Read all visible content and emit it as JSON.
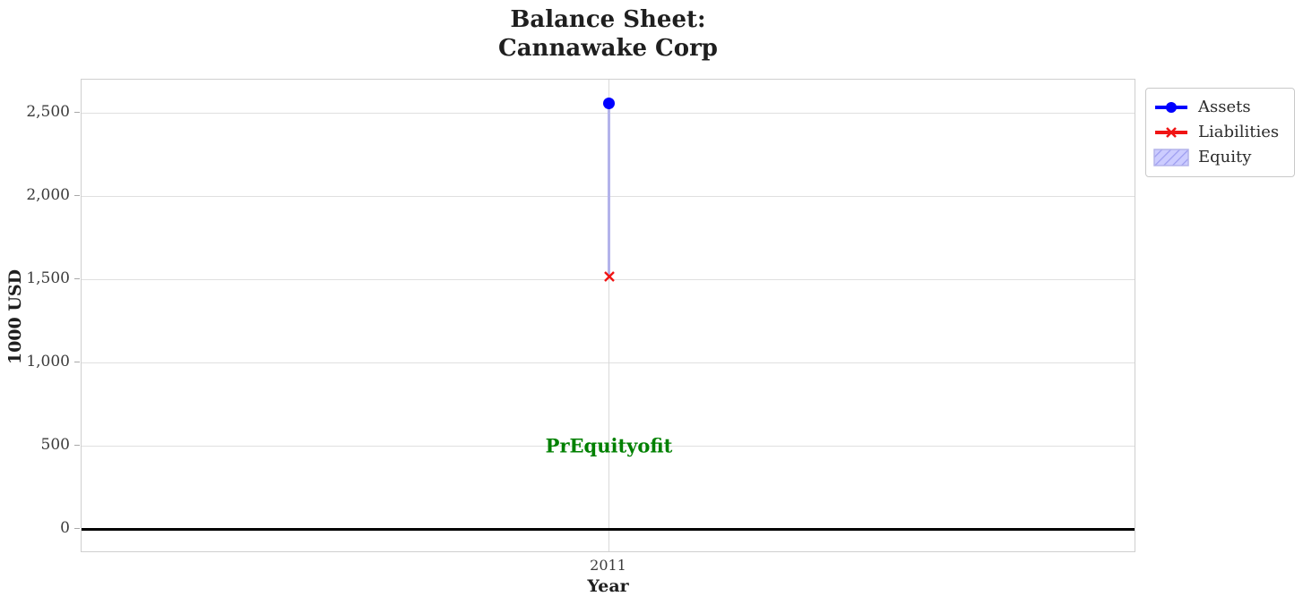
{
  "chart_data": {
    "type": "line",
    "title": "Balance Sheet:\nCannawake Corp",
    "title_line1": "Balance Sheet:",
    "title_line2": "Cannawake Corp",
    "xlabel": "Year",
    "ylabel": "1000 USD",
    "x": [
      2011
    ],
    "xtick_labels": [
      "2011"
    ],
    "series": [
      {
        "name": "Assets",
        "values": [
          2560
        ],
        "color": "#0000ff",
        "marker": "circle",
        "style": "line"
      },
      {
        "name": "Liabilities",
        "values": [
          1515
        ],
        "color": "#f01414",
        "marker": "x",
        "style": "line"
      },
      {
        "name": "Equity",
        "values": [
          1045
        ],
        "color": "#ccccff",
        "hatch_color": "#9d9df0",
        "edge_color": "#b3b3ea",
        "style": "band",
        "band_between": [
          "Liabilities",
          "Assets"
        ]
      }
    ],
    "annotation": {
      "text": "PrEquityofit",
      "x": 2011,
      "y": 500,
      "color": "#008000"
    },
    "ylim": [
      -145,
      2700
    ],
    "yticks": [
      0,
      500,
      1000,
      1500,
      2000,
      2500
    ],
    "ytick_labels": [
      "0",
      "500",
      "1,000",
      "1,500",
      "2,000",
      "2,500"
    ],
    "grid": true,
    "zero_line": true,
    "zero_line_color": "#000000",
    "legend_position": "outside-top-right",
    "legend_entries": [
      "Assets",
      "Liabilities",
      "Equity"
    ]
  }
}
